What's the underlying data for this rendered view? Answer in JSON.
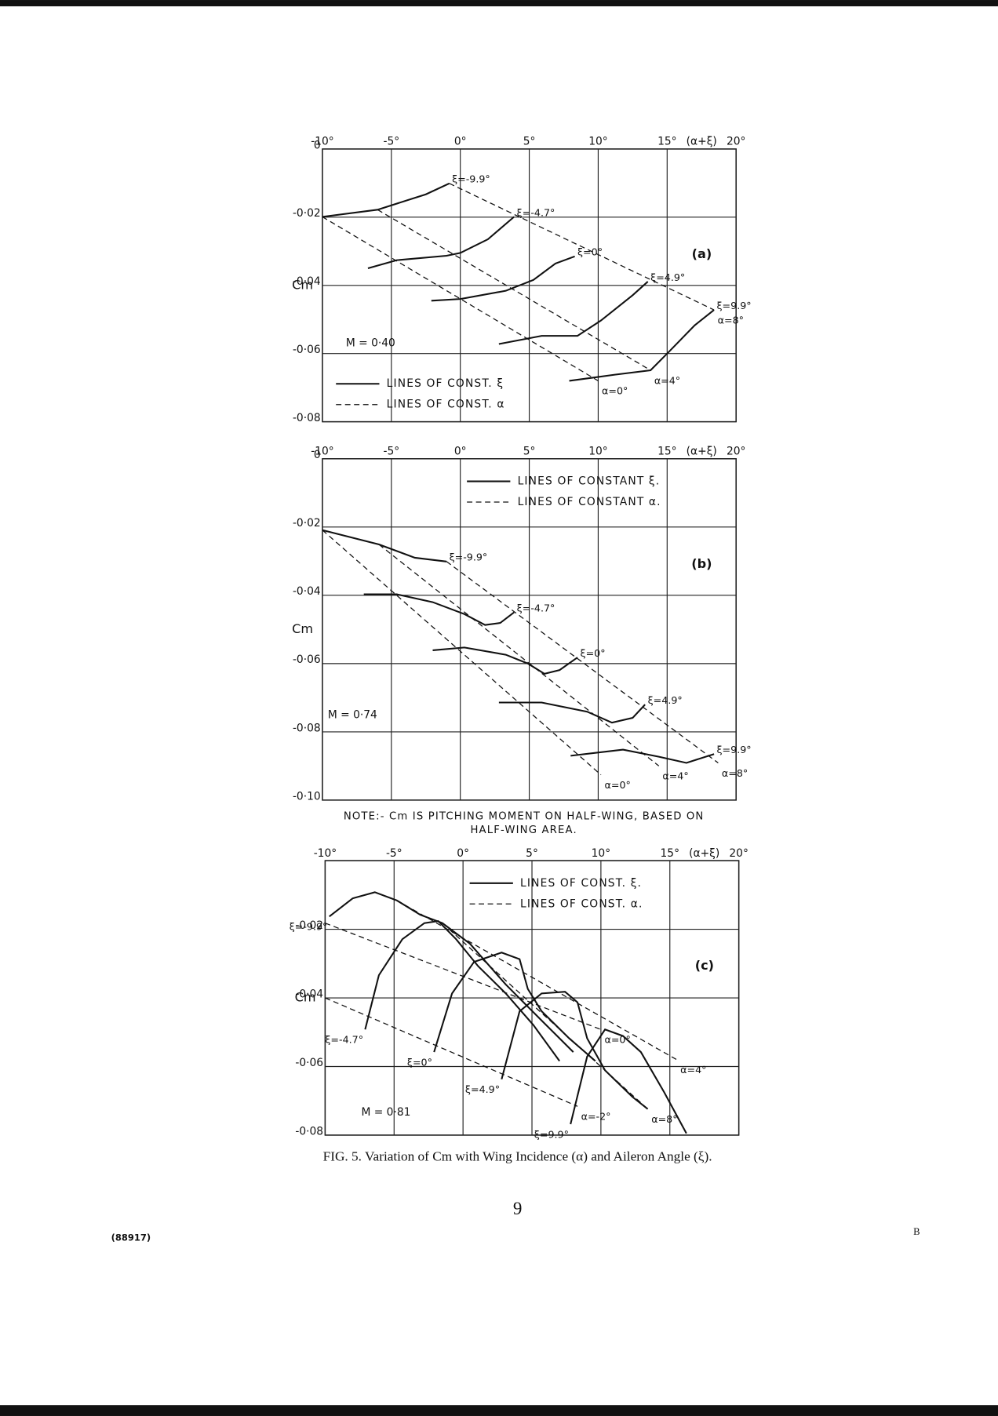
{
  "chart_data": [
    {
      "type": "line",
      "xlabel": "(α+ξ)",
      "ylabel": "Cm",
      "panel_label": "(a)",
      "mach": "M = 0·40",
      "legend": [
        "LINES OF CONST. ξ",
        "LINES OF CONST. α"
      ],
      "legend_loc": "lower left",
      "series_label_at": "end",
      "grid": true,
      "color": "#111111",
      "xlim": [
        -10,
        20
      ],
      "ylim": [
        -0.08,
        0
      ],
      "xticks": [
        {
          "value": -10,
          "label": "-10°"
        },
        {
          "value": -5,
          "label": "-5°"
        },
        {
          "value": 0,
          "label": "0°"
        },
        {
          "value": 5,
          "label": "5°"
        },
        {
          "value": 10,
          "label": "10°"
        },
        {
          "value": 15,
          "label": "15°"
        },
        {
          "value": 20,
          "label": "20°"
        }
      ],
      "yticks": [
        0,
        {
          "value": -0.02,
          "label": "-0·02"
        },
        {
          "value": -0.04,
          "label": "-0·04"
        },
        {
          "value": -0.06,
          "label": "-0·06"
        },
        {
          "value": -0.08,
          "label": "-0·08"
        }
      ],
      "series": [
        {
          "name": "ξ=-9.9°",
          "style": "solid",
          "x": [
            -10,
            -6,
            -2.5,
            -0.8
          ],
          "values": [
            -0.0199,
            -0.0178,
            -0.0133,
            -0.0101
          ]
        },
        {
          "name": "ξ=-4.7°",
          "style": "solid",
          "x": [
            -6.7,
            -4.6,
            -1,
            0,
            2,
            3.9
          ],
          "values": [
            -0.035,
            -0.0326,
            -0.0313,
            -0.0305,
            -0.0265,
            -0.0199
          ]
        },
        {
          "name": "ξ=0°",
          "style": "solid",
          "x": [
            -2.1,
            0,
            3.3,
            5.3,
            6.9,
            8.3
          ],
          "values": [
            -0.0445,
            -0.044,
            -0.0416,
            -0.0384,
            -0.0336,
            -0.0315
          ]
        },
        {
          "name": "ξ=4.9°",
          "style": "solid",
          "x": [
            2.8,
            5.9,
            8.5,
            10.2,
            12.5,
            13.6
          ],
          "values": [
            -0.0572,
            -0.0548,
            -0.0548,
            -0.0503,
            -0.0429,
            -0.0389
          ]
        },
        {
          "name": "ξ=9.9°",
          "style": "solid",
          "x": [
            7.9,
            11.2,
            13.8,
            15.1,
            17,
            18.4
          ],
          "values": [
            -0.068,
            -0.0662,
            -0.0649,
            -0.0596,
            -0.0517,
            -0.0472
          ]
        },
        {
          "name": "α=0°",
          "style": "dashed",
          "x": [
            -10,
            10
          ],
          "values": [
            -0.0199,
            -0.068
          ]
        },
        {
          "name": "α=4°",
          "style": "dashed",
          "x": [
            -6,
            13.8
          ],
          "values": [
            -0.0178,
            -0.0649
          ]
        },
        {
          "name": "α=8°",
          "style": "dashed",
          "x": [
            -0.8,
            18.4
          ],
          "values": [
            -0.0101,
            -0.0472
          ]
        }
      ]
    },
    {
      "type": "line",
      "xlabel": "(α+ξ)",
      "ylabel": "Cm",
      "panel_label": "(b)",
      "mach": "M = 0·74",
      "legend": [
        "LINES OF CONSTANT ξ.",
        "LINES OF CONSTANT α."
      ],
      "legend_loc": "upper center",
      "series_label_at": "end",
      "grid": true,
      "color": "#111111",
      "xlim": [
        -10,
        20
      ],
      "ylim": [
        -0.1,
        0
      ],
      "xticks": [
        {
          "value": -10,
          "label": "-10°"
        },
        {
          "value": -5,
          "label": "-5°"
        },
        {
          "value": 0,
          "label": "0°"
        },
        {
          "value": 5,
          "label": "5°"
        },
        {
          "value": 10,
          "label": "10°"
        },
        {
          "value": 15,
          "label": "15°"
        },
        {
          "value": 20,
          "label": "20°"
        }
      ],
      "yticks": [
        0,
        {
          "value": -0.02,
          "label": "-0·02"
        },
        {
          "value": -0.04,
          "label": "-0·04"
        },
        {
          "value": -0.06,
          "label": "-0·06"
        },
        {
          "value": -0.08,
          "label": "-0·08"
        },
        {
          "value": -0.1,
          "label": "-0·10"
        }
      ],
      "series": [
        {
          "name": "ξ=-9.9°",
          "style": "solid",
          "x": [
            -10,
            -5.9,
            -3.3,
            -1
          ],
          "values": [
            -0.0209,
            -0.0251,
            -0.029,
            -0.0301
          ]
        },
        {
          "name": "ξ=-4.7°",
          "style": "solid",
          "x": [
            -7,
            -4.6,
            -2,
            0.3,
            1.8,
            2.9,
            3.9
          ],
          "values": [
            -0.0397,
            -0.0397,
            -0.042,
            -0.0455,
            -0.0487,
            -0.0481,
            -0.045
          ]
        },
        {
          "name": "ξ=0°",
          "style": "solid",
          "x": [
            -2,
            0.3,
            3.3,
            4.9,
            6.1,
            7.2,
            8.5
          ],
          "values": [
            -0.0561,
            -0.0553,
            -0.0574,
            -0.06,
            -0.063,
            -0.0619,
            -0.0582
          ]
        },
        {
          "name": "ξ=4.9°",
          "style": "solid",
          "x": [
            2.8,
            5.9,
            9.2,
            11,
            12.5,
            13.4
          ],
          "values": [
            -0.0714,
            -0.0714,
            -0.0741,
            -0.0773,
            -0.0759,
            -0.072
          ]
        },
        {
          "name": "ξ=9.9°",
          "style": "solid",
          "x": [
            8,
            11.8,
            14.4,
            16.4,
            18.4
          ],
          "values": [
            -0.087,
            -0.0852,
            -0.0873,
            -0.0891,
            -0.0865
          ]
        },
        {
          "name": "α=0°",
          "style": "dashed",
          "x": [
            -10,
            10.2
          ],
          "values": [
            -0.0209,
            -0.0926
          ]
        },
        {
          "name": "α=4°",
          "style": "dashed",
          "x": [
            -5.9,
            14.4
          ],
          "values": [
            -0.0251,
            -0.09
          ]
        },
        {
          "name": "α=8°",
          "style": "dashed",
          "x": [
            -1,
            18.7
          ],
          "values": [
            -0.0301,
            -0.0891
          ]
        }
      ]
    },
    {
      "type": "line",
      "xlabel": "(α+ξ)",
      "ylabel": "Cm",
      "panel_label": "(c)",
      "mach": "M = 0·81",
      "legend": [
        "LINES OF CONST. ξ.",
        "LINES OF CONST. α."
      ],
      "legend_loc": "upper center",
      "series_label_at": "start",
      "grid": true,
      "color": "#111111",
      "xlim": [
        -10,
        20
      ],
      "ylim": [
        -0.08,
        0
      ],
      "xticks": [
        {
          "value": -10,
          "label": "-10°"
        },
        {
          "value": -5,
          "label": "-5°"
        },
        {
          "value": 0,
          "label": "0°"
        },
        {
          "value": 5,
          "label": "5°"
        },
        {
          "value": 10,
          "label": "10°"
        },
        {
          "value": 15,
          "label": "15°"
        },
        {
          "value": 20,
          "label": "20°"
        }
      ],
      "yticks": [
        {
          "value": -0.02,
          "label": "-0·02"
        },
        {
          "value": -0.04,
          "label": "-0·04"
        },
        {
          "value": -0.06,
          "label": "-0·06"
        },
        {
          "value": -0.08,
          "label": "-0·08"
        }
      ],
      "series": [
        {
          "name": "ξ=-9.9°",
          "style": "solid",
          "x": [
            -9.7,
            -8,
            -6.4,
            -4.8,
            -3.1,
            -1.5,
            0.5,
            3.1,
            5.7,
            8
          ],
          "values": [
            -0.0163,
            -0.011,
            -0.0092,
            -0.0116,
            -0.0158,
            -0.0182,
            -0.0242,
            -0.0361,
            -0.0466,
            -0.0558
          ]
        },
        {
          "name": "ξ=-4.7°",
          "style": "solid",
          "x": [
            -7.1,
            -6.1,
            -4.4,
            -2.8,
            -1.8,
            -0.5,
            1.1,
            3.1,
            5.1,
            7
          ],
          "values": [
            -0.0492,
            -0.0334,
            -0.0229,
            -0.0182,
            -0.0176,
            -0.0229,
            -0.0308,
            -0.0387,
            -0.0479,
            -0.0584
          ]
        },
        {
          "name": "ξ=0°",
          "style": "solid",
          "x": [
            -2.1,
            -0.8,
            0.8,
            2.8,
            4.1,
            4.7,
            5.7,
            7.7,
            9.6
          ],
          "values": [
            -0.0558,
            -0.0387,
            -0.0295,
            -0.0268,
            -0.0287,
            -0.0374,
            -0.0439,
            -0.0518,
            -0.0584
          ]
        },
        {
          "name": "ξ=4.9°",
          "style": "solid",
          "x": [
            2.8,
            4.1,
            5.7,
            7.4,
            8.3,
            9,
            10.3,
            12.3,
            13.4
          ],
          "values": [
            -0.0637,
            -0.0439,
            -0.0387,
            -0.0382,
            -0.0413,
            -0.0518,
            -0.0611,
            -0.0689,
            -0.0724
          ]
        },
        {
          "name": "ξ=9.9°",
          "style": "solid",
          "x": [
            7.8,
            9,
            10.3,
            11.6,
            12.9,
            14.6,
            16.2
          ],
          "values": [
            -0.0768,
            -0.0571,
            -0.0492,
            -0.0511,
            -0.0558,
            -0.0676,
            -0.0795
          ]
        },
        {
          "name": "α=-2°",
          "style": "dashed",
          "x": [
            -10,
            8.3
          ],
          "values": [
            -0.04,
            -0.0716
          ]
        },
        {
          "name": "α=0°",
          "style": "dashed",
          "x": [
            -10,
            10
          ],
          "values": [
            -0.0182,
            -0.0492
          ]
        },
        {
          "name": "α=4°",
          "style": "dashed",
          "x": [
            -4.8,
            15.5
          ],
          "values": [
            -0.0116,
            -0.058
          ]
        },
        {
          "name": "α=8°",
          "style": "dashed",
          "x": [
            -1.5,
            13.4
          ],
          "values": [
            -0.0182,
            -0.0724
          ]
        }
      ]
    }
  ],
  "note": [
    "NOTE:- Cm IS PITCHING MOMENT ON HALF-WING, BASED ON",
    "HALF-WING AREA."
  ],
  "caption": "FIG. 5. Variation of Cm with Wing Incidence (α) and Aileron Angle (ξ).",
  "page_number": "9",
  "print_code": "(88917)",
  "signature": "B"
}
